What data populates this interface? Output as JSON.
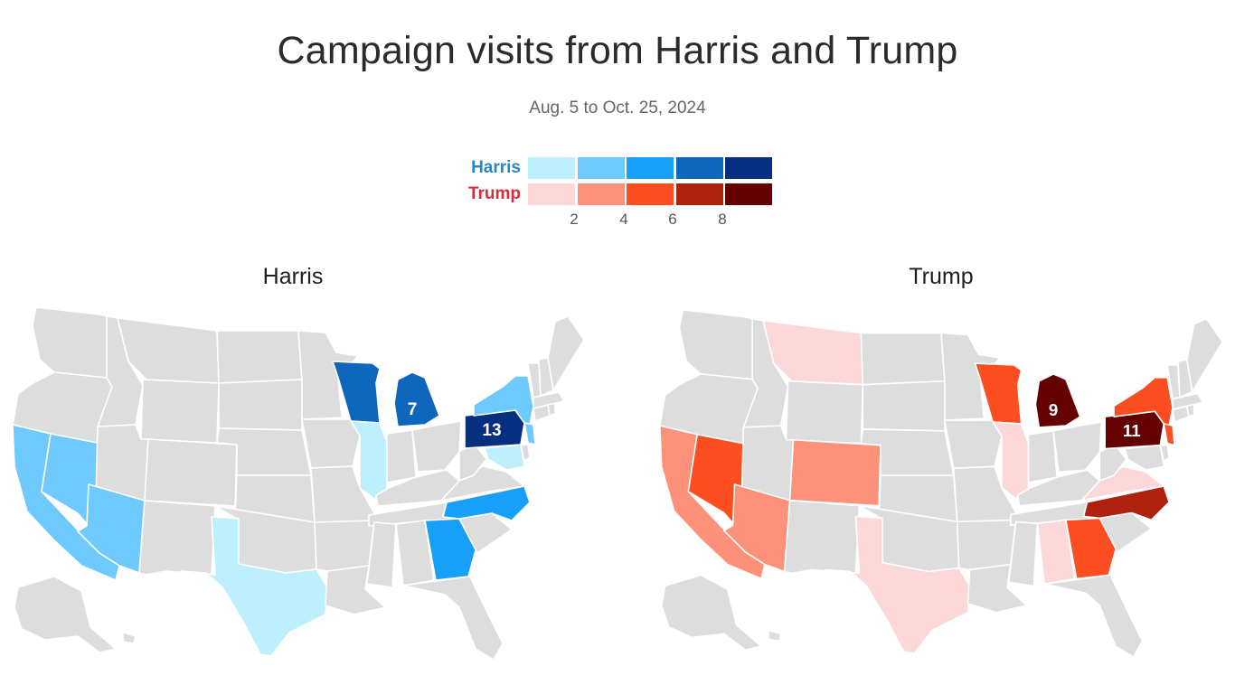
{
  "title": "Campaign visits from Harris and Trump",
  "subtitle": "Aug. 5 to Oct. 25, 2024",
  "legend": {
    "harris_label": "Harris",
    "trump_label": "Trump",
    "harris_color": "#2a86c2",
    "trump_color": "#d0303c",
    "harris_scale": [
      "#bdf0fc",
      "#6ec9fd",
      "#18a0f8",
      "#0f66bd",
      "#06307f"
    ],
    "trump_scale": [
      "#fdd8d9",
      "#fd917a",
      "#fd4e21",
      "#ae210f",
      "#650000"
    ],
    "ticks": [
      "2",
      "4",
      "6",
      "8"
    ]
  },
  "maps": {
    "harris": {
      "title": "Harris",
      "labels": {
        "MI": "7",
        "PA": "13"
      }
    },
    "trump": {
      "title": "Trump",
      "labels": {
        "MI": "9",
        "PA": "11"
      }
    }
  },
  "colors": {
    "no_visit": "#dddddd",
    "background": "#ffffff"
  },
  "states": {
    "harris": {
      "CA": "#6ec9fd",
      "NV": "#6ec9fd",
      "AZ": "#6ec9fd",
      "TX": "#bdf0fc",
      "WI": "#0f66bd",
      "MI": "#0f66bd",
      "IL": "#bdf0fc",
      "PA": "#06307f",
      "NY": "#6ec9fd",
      "NC": "#18a0f8",
      "GA": "#18a0f8",
      "MD": "#bdf0fc",
      "NJ": "#6ec9fd"
    },
    "trump": {
      "CA": "#fd917a",
      "NV": "#fd4e21",
      "AZ": "#fd917a",
      "MT": "#fdd8d9",
      "CO": "#fd917a",
      "TX": "#fdd8d9",
      "WI": "#fd4e21",
      "MI": "#650000",
      "IL": "#fdd8d9",
      "PA": "#650000",
      "NY": "#fd4e21",
      "NJ": "#fd4e21",
      "VA": "#fdd8d9",
      "NC": "#ae210f",
      "GA": "#fd4e21",
      "AL": "#fdd8d9"
    }
  }
}
